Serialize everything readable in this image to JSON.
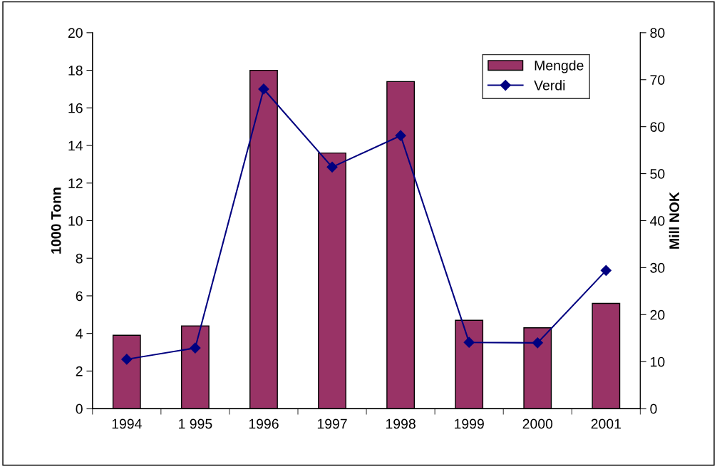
{
  "chart_data": {
    "type": "bar",
    "categories": [
      "1994",
      "1 995",
      "1996",
      "1997",
      "1998",
      "1999",
      "2000",
      "2001"
    ],
    "series": [
      {
        "name": "Mengde",
        "color": "#993366",
        "values": [
          3.9,
          4.4,
          18.0,
          13.6,
          17.4,
          4.7,
          4.3,
          5.6
        ]
      },
      {
        "name": "Verdi",
        "type": "line",
        "axis": "y2",
        "color": "#000080",
        "values": [
          10.5,
          12.9,
          68,
          51.4,
          58.1,
          14.1,
          14.0,
          29.4
        ]
      }
    ],
    "ylabel": "1000 Tonn",
    "y2label": "Mill NOK",
    "ylim": [
      0,
      20
    ],
    "yticks": [
      0,
      2,
      4,
      6,
      8,
      10,
      12,
      14,
      16,
      18,
      20
    ],
    "y2lim": [
      0,
      80
    ],
    "y2ticks": [
      0,
      10,
      20,
      30,
      40,
      50,
      60,
      70,
      80
    ],
    "marker": "diamond",
    "grid": false,
    "legend": "top right"
  }
}
